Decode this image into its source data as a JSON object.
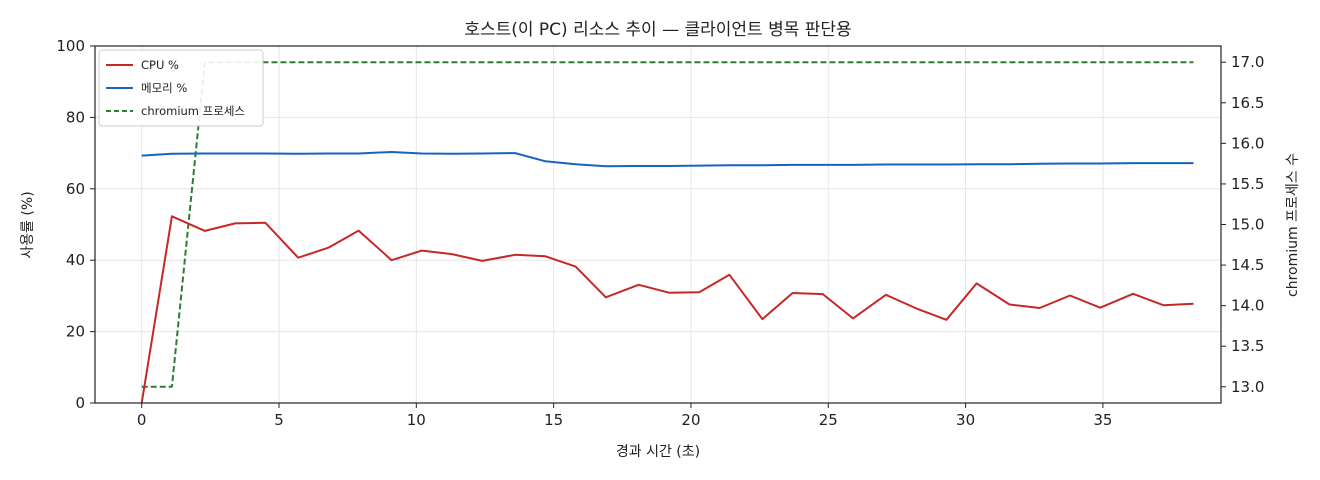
{
  "chart_data": {
    "type": "line",
    "title": "호스트(이 PC) 리소스 추이 — 클라이언트 병목 판단용",
    "xlabel": "경과 시간 (초)",
    "ylabel": "사용률 (%)",
    "y2label": "chromium 프로세스 수",
    "xlim": [
      -1.7,
      39.3
    ],
    "ylim": [
      0,
      100
    ],
    "y2lim": [
      12.8,
      17.2
    ],
    "xticks": [
      0,
      5,
      10,
      15,
      20,
      25,
      30,
      35
    ],
    "yticks": [
      0,
      20,
      40,
      60,
      80,
      100
    ],
    "y2ticks": [
      13.0,
      13.5,
      14.0,
      14.5,
      15.0,
      15.5,
      16.0,
      16.5,
      17.0
    ],
    "y2tick_labels": [
      "13.0",
      "13.5",
      "14.0",
      "14.5",
      "15.0",
      "15.5",
      "16.0",
      "16.5",
      "17.0"
    ],
    "grid": true,
    "legend_position": "top-left",
    "series": [
      {
        "name": "CPU %",
        "axis": "left",
        "color": "#c62828",
        "style": "solid",
        "x": [
          0.0,
          1.1,
          2.3,
          3.4,
          4.5,
          5.7,
          6.8,
          7.9,
          9.1,
          10.2,
          11.3,
          12.4,
          13.6,
          14.7,
          15.8,
          16.9,
          18.1,
          19.2,
          20.3,
          21.4,
          22.6,
          23.7,
          24.8,
          25.9,
          27.1,
          28.2,
          29.3,
          30.4,
          31.6,
          32.7,
          33.8,
          34.9,
          36.1,
          37.2,
          38.3
        ],
        "y": [
          0,
          52.3,
          48.2,
          50.3,
          50.5,
          40.7,
          43.5,
          48.3,
          40.0,
          42.7,
          41.7,
          39.8,
          41.5,
          41.1,
          38.2,
          29.6,
          33.1,
          30.9,
          31.0,
          35.9,
          23.5,
          30.8,
          30.5,
          23.7,
          30.3,
          26.5,
          23.3,
          33.5,
          27.6,
          26.6,
          30.1,
          26.7,
          30.6,
          27.4,
          27.8
        ]
      },
      {
        "name": "메모리 %",
        "axis": "left",
        "color": "#1565c0",
        "style": "solid",
        "x": [
          0.0,
          1.1,
          2.3,
          3.4,
          4.5,
          5.7,
          6.8,
          7.9,
          9.1,
          10.2,
          11.3,
          12.4,
          13.6,
          14.7,
          15.8,
          16.9,
          18.1,
          19.2,
          20.3,
          21.4,
          22.6,
          23.7,
          24.8,
          25.9,
          27.1,
          28.2,
          29.3,
          30.4,
          31.6,
          32.7,
          33.8,
          34.9,
          36.1,
          37.2,
          38.3
        ],
        "y": [
          69.3,
          69.8,
          69.9,
          69.9,
          69.9,
          69.8,
          69.9,
          69.9,
          70.3,
          69.9,
          69.8,
          69.9,
          70.0,
          67.7,
          66.9,
          66.3,
          66.4,
          66.4,
          66.5,
          66.6,
          66.6,
          66.7,
          66.7,
          66.7,
          66.8,
          66.8,
          66.8,
          66.9,
          66.9,
          67.0,
          67.1,
          67.1,
          67.2,
          67.2,
          67.2
        ]
      },
      {
        "name": "chromium 프로세스",
        "axis": "right",
        "color": "#2e7d32",
        "style": "dashed",
        "x": [
          0.0,
          1.1,
          2.3,
          3.4,
          4.5,
          5.7,
          6.8,
          7.9,
          9.1,
          10.2,
          11.3,
          12.4,
          13.6,
          14.7,
          15.8,
          16.9,
          18.1,
          19.2,
          20.3,
          21.4,
          22.6,
          23.7,
          24.8,
          25.9,
          27.1,
          28.2,
          29.3,
          30.4,
          31.6,
          32.7,
          33.8,
          34.9,
          36.1,
          37.2,
          38.3
        ],
        "y": [
          13,
          13,
          17,
          17,
          17,
          17,
          17,
          17,
          17,
          17,
          17,
          17,
          17,
          17,
          17,
          17,
          17,
          17,
          17,
          17,
          17,
          17,
          17,
          17,
          17,
          17,
          17,
          17,
          17,
          17,
          17,
          17,
          17,
          17,
          17
        ]
      }
    ]
  }
}
